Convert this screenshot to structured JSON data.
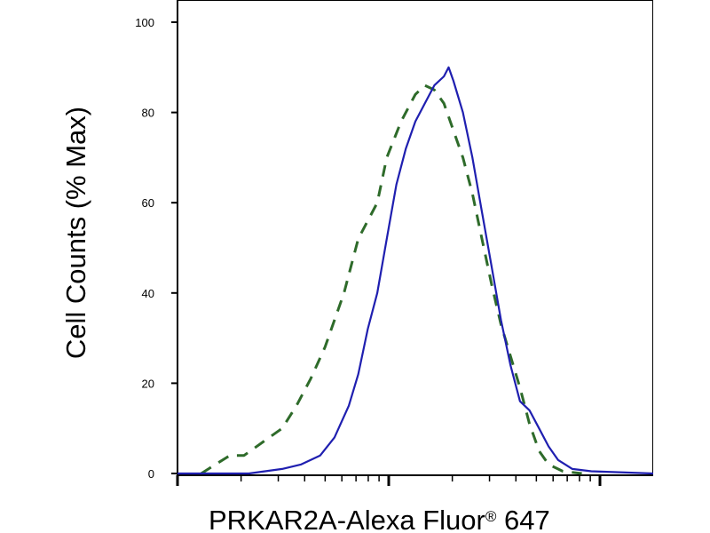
{
  "chart_data": {
    "type": "line",
    "title": "",
    "xlabel": "PRKAR2A-Alexa Fluor",
    "xlabel_sup": "®",
    "xlabel_suffix": " 647",
    "ylabel": "Cell Counts (% Max)",
    "x_scale": "log",
    "x_ticks_labeled": false,
    "ylim": [
      0,
      100
    ],
    "yticks": [
      0,
      20,
      40,
      60,
      80,
      100
    ],
    "grid": false,
    "legend": "none",
    "series": [
      {
        "style": "dashed",
        "color": "#2e6b2a",
        "points": [
          [
            0.05,
            0
          ],
          [
            0.08,
            2
          ],
          [
            0.11,
            4
          ],
          [
            0.14,
            4
          ],
          [
            0.18,
            7
          ],
          [
            0.22,
            10
          ],
          [
            0.25,
            15
          ],
          [
            0.28,
            21
          ],
          [
            0.31,
            28
          ],
          [
            0.35,
            40
          ],
          [
            0.38,
            52
          ],
          [
            0.4,
            56
          ],
          [
            0.42,
            60
          ],
          [
            0.44,
            70
          ],
          [
            0.47,
            78
          ],
          [
            0.5,
            84
          ],
          [
            0.52,
            86
          ],
          [
            0.54,
            85
          ],
          [
            0.56,
            82
          ],
          [
            0.58,
            76
          ],
          [
            0.6,
            70
          ],
          [
            0.62,
            62
          ],
          [
            0.64,
            52
          ],
          [
            0.66,
            42
          ],
          [
            0.68,
            33
          ],
          [
            0.7,
            26
          ],
          [
            0.72,
            19
          ],
          [
            0.74,
            11
          ],
          [
            0.76,
            5
          ],
          [
            0.78,
            2
          ],
          [
            0.81,
            0.5
          ],
          [
            0.85,
            0
          ]
        ]
      },
      {
        "style": "solid",
        "color": "#1f1fb0",
        "points": [
          [
            0.0,
            0
          ],
          [
            0.15,
            0
          ],
          [
            0.22,
            1
          ],
          [
            0.26,
            2
          ],
          [
            0.3,
            4
          ],
          [
            0.33,
            8
          ],
          [
            0.36,
            15
          ],
          [
            0.38,
            22
          ],
          [
            0.4,
            32
          ],
          [
            0.42,
            40
          ],
          [
            0.44,
            52
          ],
          [
            0.46,
            64
          ],
          [
            0.48,
            72
          ],
          [
            0.5,
            78
          ],
          [
            0.52,
            82
          ],
          [
            0.54,
            86
          ],
          [
            0.56,
            88
          ],
          [
            0.57,
            90
          ],
          [
            0.58,
            87
          ],
          [
            0.6,
            80
          ],
          [
            0.62,
            70
          ],
          [
            0.64,
            58
          ],
          [
            0.66,
            46
          ],
          [
            0.68,
            34
          ],
          [
            0.7,
            24
          ],
          [
            0.72,
            16
          ],
          [
            0.74,
            14
          ],
          [
            0.76,
            10
          ],
          [
            0.78,
            6
          ],
          [
            0.8,
            3
          ],
          [
            0.83,
            1
          ],
          [
            0.87,
            0.5
          ],
          [
            1.0,
            0
          ]
        ]
      }
    ]
  }
}
